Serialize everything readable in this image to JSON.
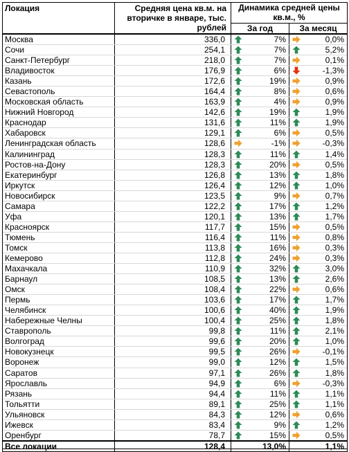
{
  "header": {
    "location": "Локация",
    "avg_price": "Средняя цена кв.м. на вторичке в январе, тыс. рублей",
    "dynamics": "Динамика средней цены кв.м., %",
    "year": "За год",
    "month": "За месяц"
  },
  "colors": {
    "up": "#2e8b57",
    "flat": "#f0a030",
    "down": "#e53010"
  },
  "rows": [
    {
      "loc": "Москва",
      "price": "336,0",
      "year": "7%",
      "y": "up",
      "month": "0,0%",
      "m": "flat"
    },
    {
      "loc": "Сочи",
      "price": "254,1",
      "year": "7%",
      "y": "up",
      "month": "5,2%",
      "m": "up"
    },
    {
      "loc": "Санкт-Петербург",
      "price": "218,0",
      "year": "7%",
      "y": "up",
      "month": "0,1%",
      "m": "flat"
    },
    {
      "loc": "Владивосток",
      "price": "176,9",
      "year": "6%",
      "y": "up",
      "month": "-1,3%",
      "m": "down"
    },
    {
      "loc": "Казань",
      "price": "172,6",
      "year": "19%",
      "y": "up",
      "month": "0,9%",
      "m": "flat"
    },
    {
      "loc": "Севастополь",
      "price": "164,4",
      "year": "8%",
      "y": "up",
      "month": "0,6%",
      "m": "flat"
    },
    {
      "loc": "Московская область",
      "price": "163,9",
      "year": "4%",
      "y": "up",
      "month": "0,9%",
      "m": "flat"
    },
    {
      "loc": "Нижний Новгород",
      "price": "142,6",
      "year": "19%",
      "y": "up",
      "month": "1,9%",
      "m": "up"
    },
    {
      "loc": "Краснодар",
      "price": "131,6",
      "year": "11%",
      "y": "up",
      "month": "1,9%",
      "m": "up"
    },
    {
      "loc": "Хабаровск",
      "price": "129,1",
      "year": "6%",
      "y": "up",
      "month": "0,5%",
      "m": "flat"
    },
    {
      "loc": "Ленинградская область",
      "price": "128,6",
      "year": "-1%",
      "y": "flat",
      "month": "-0,3%",
      "m": "flat"
    },
    {
      "loc": "Калининград",
      "price": "128,3",
      "year": "11%",
      "y": "up",
      "month": "1,4%",
      "m": "up"
    },
    {
      "loc": "Ростов-на-Дону",
      "price": "128,3",
      "year": "20%",
      "y": "up",
      "month": "0,5%",
      "m": "flat"
    },
    {
      "loc": "Екатеринбург",
      "price": "126,8",
      "year": "13%",
      "y": "up",
      "month": "1,8%",
      "m": "up"
    },
    {
      "loc": "Иркутск",
      "price": "126,4",
      "year": "12%",
      "y": "up",
      "month": "1,0%",
      "m": "up"
    },
    {
      "loc": "Новосибирск",
      "price": "123,5",
      "year": "9%",
      "y": "up",
      "month": "0,7%",
      "m": "flat"
    },
    {
      "loc": "Самара",
      "price": "122,2",
      "year": "17%",
      "y": "up",
      "month": "1,2%",
      "m": "up"
    },
    {
      "loc": "Уфа",
      "price": "120,1",
      "year": "13%",
      "y": "up",
      "month": "1,7%",
      "m": "up"
    },
    {
      "loc": "Красноярск",
      "price": "117,7",
      "year": "15%",
      "y": "up",
      "month": "0,5%",
      "m": "flat"
    },
    {
      "loc": "Тюмень",
      "price": "116,4",
      "year": "11%",
      "y": "up",
      "month": "0,8%",
      "m": "flat"
    },
    {
      "loc": "Томск",
      "price": "113,8",
      "year": "16%",
      "y": "up",
      "month": "0,3%",
      "m": "flat"
    },
    {
      "loc": "Кемерово",
      "price": "112,8",
      "year": "24%",
      "y": "up",
      "month": "0,3%",
      "m": "flat"
    },
    {
      "loc": "Махачкала",
      "price": "110,9",
      "year": "32%",
      "y": "up",
      "month": "3,0%",
      "m": "up"
    },
    {
      "loc": "Барнаул",
      "price": "108,5",
      "year": "13%",
      "y": "up",
      "month": "2,6%",
      "m": "up"
    },
    {
      "loc": "Омск",
      "price": "108,4",
      "year": "22%",
      "y": "up",
      "month": "0,6%",
      "m": "flat"
    },
    {
      "loc": "Пермь",
      "price": "103,6",
      "year": "17%",
      "y": "up",
      "month": "1,7%",
      "m": "up"
    },
    {
      "loc": "Челябинск",
      "price": "100,6",
      "year": "40%",
      "y": "up",
      "month": "1,9%",
      "m": "up"
    },
    {
      "loc": "Набережные Челны",
      "price": "100,4",
      "year": "25%",
      "y": "up",
      "month": "1,8%",
      "m": "up"
    },
    {
      "loc": "Ставрополь",
      "price": "99,8",
      "year": "11%",
      "y": "up",
      "month": "2,1%",
      "m": "up"
    },
    {
      "loc": "Волгоград",
      "price": "99,6",
      "year": "20%",
      "y": "up",
      "month": "1,0%",
      "m": "up"
    },
    {
      "loc": "Новокузнецк",
      "price": "99,5",
      "year": "26%",
      "y": "up",
      "month": "-0,1%",
      "m": "flat"
    },
    {
      "loc": "Воронеж",
      "price": "99,0",
      "year": "12%",
      "y": "up",
      "month": "1,5%",
      "m": "up"
    },
    {
      "loc": "Саратов",
      "price": "97,1",
      "year": "26%",
      "y": "up",
      "month": "1,8%",
      "m": "up"
    },
    {
      "loc": "Ярославль",
      "price": "94,9",
      "year": "6%",
      "y": "up",
      "month": "-0,3%",
      "m": "flat"
    },
    {
      "loc": "Рязань",
      "price": "94,4",
      "year": "11%",
      "y": "up",
      "month": "1,1%",
      "m": "up"
    },
    {
      "loc": "Тольятти",
      "price": "89,1",
      "year": "25%",
      "y": "up",
      "month": "1,1%",
      "m": "up"
    },
    {
      "loc": "Ульяновск",
      "price": "84,3",
      "year": "12%",
      "y": "up",
      "month": "0,6%",
      "m": "flat"
    },
    {
      "loc": "Ижевск",
      "price": "83,4",
      "year": "9%",
      "y": "up",
      "month": "1,2%",
      "m": "up"
    },
    {
      "loc": "Оренбург",
      "price": "78,7",
      "year": "15%",
      "y": "up",
      "month": "0,5%",
      "m": "flat"
    }
  ],
  "total": {
    "loc": "Все локации",
    "price": "128,4",
    "year": "13,0%",
    "month": "1,1%"
  }
}
